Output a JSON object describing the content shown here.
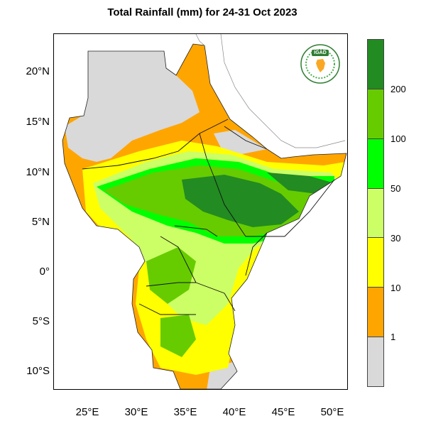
{
  "title": "Total Rainfall (mm) for 24-31 Oct 2023",
  "logo": {
    "text": "IGAD"
  },
  "map": {
    "lat_ticks": [
      "20°N",
      "15°N",
      "10°N",
      "5°N",
      "0°",
      "5°S",
      "10°S"
    ],
    "lon_ticks": [
      "25°E",
      "30°E",
      "35°E",
      "40°E",
      "45°E",
      "50°E"
    ]
  },
  "legend": {
    "classes": [
      {
        "color": "#d9d9d9"
      },
      {
        "color": "#ffa500"
      },
      {
        "color": "#ffff00"
      },
      {
        "color": "#ccff66"
      },
      {
        "color": "#00ff00"
      },
      {
        "color": "#66cc00"
      },
      {
        "color": "#228b22"
      }
    ],
    "labels": [
      "1",
      "10",
      "30",
      "50",
      "100",
      "200"
    ]
  },
  "colors": {
    "none": "#d9d9d9",
    "orange": "#ffa500",
    "yellow": "#ffff00",
    "lightgreen": "#ccff66",
    "green": "#00ff00",
    "midgreen": "#66cc00",
    "darkgreen": "#228b22"
  }
}
